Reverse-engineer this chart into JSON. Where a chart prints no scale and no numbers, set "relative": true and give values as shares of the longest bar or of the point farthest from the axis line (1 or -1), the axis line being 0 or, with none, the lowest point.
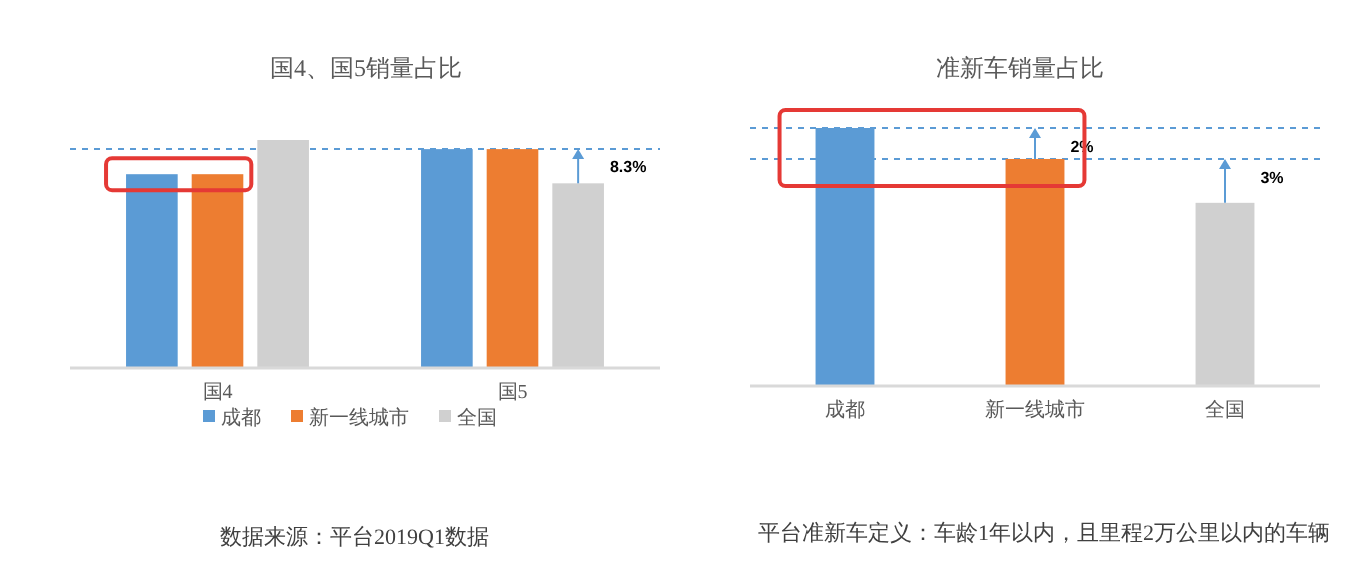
{
  "chart_data": [
    {
      "type": "bar",
      "title": "国4、国5销量占比",
      "relative": true,
      "categories": [
        "国4",
        "国5"
      ],
      "series": [
        {
          "name": "成都",
          "color": "#5b9bd5",
          "values": [
            0.85,
            0.96
          ]
        },
        {
          "name": "新一线城市",
          "color": "#ed7d31",
          "values": [
            0.85,
            0.96
          ]
        },
        {
          "name": "全国",
          "color": "#d0d0d0",
          "values": [
            1,
            0.81
          ]
        }
      ],
      "legend": "bottom",
      "grid": false,
      "ref_lines": [
        {
          "axis": "y",
          "value": 0.96,
          "color": "#5b9bd5",
          "line_style": "dashed"
        }
      ],
      "annotations": [
        "8.3%",
        "数据来源：平台2019Q1数据"
      ]
    },
    {
      "type": "bar",
      "title": "准新车销量占比",
      "relative": true,
      "categories": [
        "成都",
        "新一线城市",
        "全国"
      ],
      "values": [
        1,
        0.88,
        0.71
      ],
      "colors": [
        "#5b9bd5",
        "#ed7d31",
        "#d0d0d0"
      ],
      "legend": false,
      "grid": false,
      "ref_lines": [
        {
          "axis": "y",
          "value": 1,
          "color": "#5b9bd5",
          "line_style": "dashed"
        },
        {
          "axis": "y",
          "value": 0.88,
          "color": "#5b9bd5",
          "line_style": "dashed"
        }
      ],
      "annotations": [
        {
          "text": "2%",
          "x": "新一线城市",
          "y": 1
        },
        {
          "text": "3%",
          "x": "全国",
          "y": 0.88
        },
        "平台准新车定义：车龄1年以内，且里程2万公里以内的车辆"
      ]
    }
  ]
}
